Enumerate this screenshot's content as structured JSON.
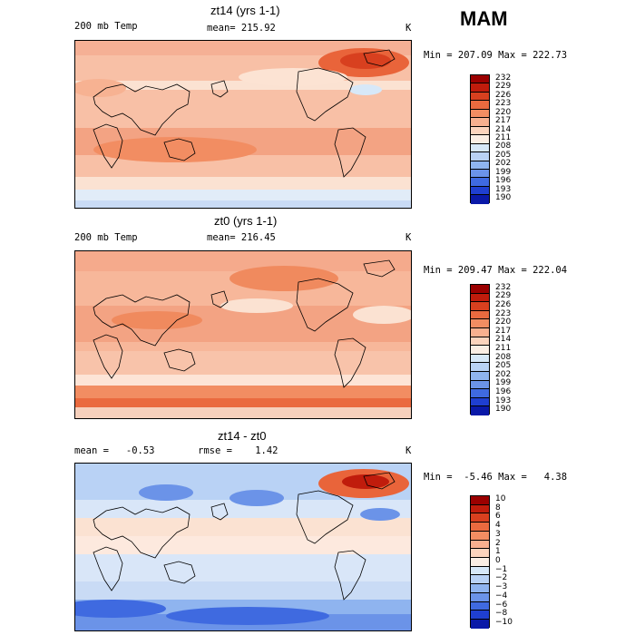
{
  "season": "MAM",
  "chart_data": [
    {
      "type": "heatmap",
      "title": "zt14 (yrs 1-1)",
      "variable": "200 mb Temp",
      "mean_label": "mean= 215.92",
      "unit": "K",
      "minmax": "Min = 207.09 Max = 222.73",
      "levels": [
        "232",
        "229",
        "226",
        "223",
        "220",
        "217",
        "214",
        "211",
        "208",
        "205",
        "202",
        "199",
        "196",
        "193",
        "190"
      ],
      "colors": [
        "#9b0000",
        "#c01c0c",
        "#d8401f",
        "#ea6a3f",
        "#f28d62",
        "#f8b08f",
        "#fcd4bd",
        "#fbeee4",
        "#d7e8f8",
        "#b9d2f5",
        "#8fb4ef",
        "#6b93e8",
        "#3f6ae0",
        "#1f3fd0",
        "#0a19a8"
      ]
    },
    {
      "type": "heatmap",
      "title": "zt0 (yrs 1-1)",
      "variable": "200 mb Temp",
      "mean_label": "mean= 216.45",
      "unit": "K",
      "minmax": "Min = 209.47 Max = 222.04",
      "levels": [
        "232",
        "229",
        "226",
        "223",
        "220",
        "217",
        "214",
        "211",
        "208",
        "205",
        "202",
        "199",
        "196",
        "193",
        "190"
      ],
      "colors": [
        "#9b0000",
        "#c01c0c",
        "#d8401f",
        "#ea6a3f",
        "#f28d62",
        "#f8b08f",
        "#fcd4bd",
        "#fbeee4",
        "#d7e8f8",
        "#b9d2f5",
        "#8fb4ef",
        "#6b93e8",
        "#3f6ae0",
        "#1f3fd0",
        "#0a19a8"
      ]
    },
    {
      "type": "heatmap",
      "title": "zt14 - zt0",
      "mean_label": "mean =   -0.53",
      "rmse_label": "rmse =    1.42",
      "unit": "K",
      "minmax": "Min =  -5.46 Max =   4.38",
      "levels": [
        "10",
        "8",
        "6",
        "4",
        "3",
        "2",
        "1",
        "0",
        "−1",
        "−2",
        "−3",
        "−4",
        "−6",
        "−8",
        "−10"
      ],
      "colors": [
        "#9b0000",
        "#c01c0c",
        "#d8401f",
        "#ea6a3f",
        "#f28d62",
        "#f8b08f",
        "#fcd4bd",
        "#fbeee4",
        "#d7e8f8",
        "#b9d2f5",
        "#8fb4ef",
        "#6b93e8",
        "#3f6ae0",
        "#1f3fd0",
        "#0a19a8"
      ]
    }
  ]
}
